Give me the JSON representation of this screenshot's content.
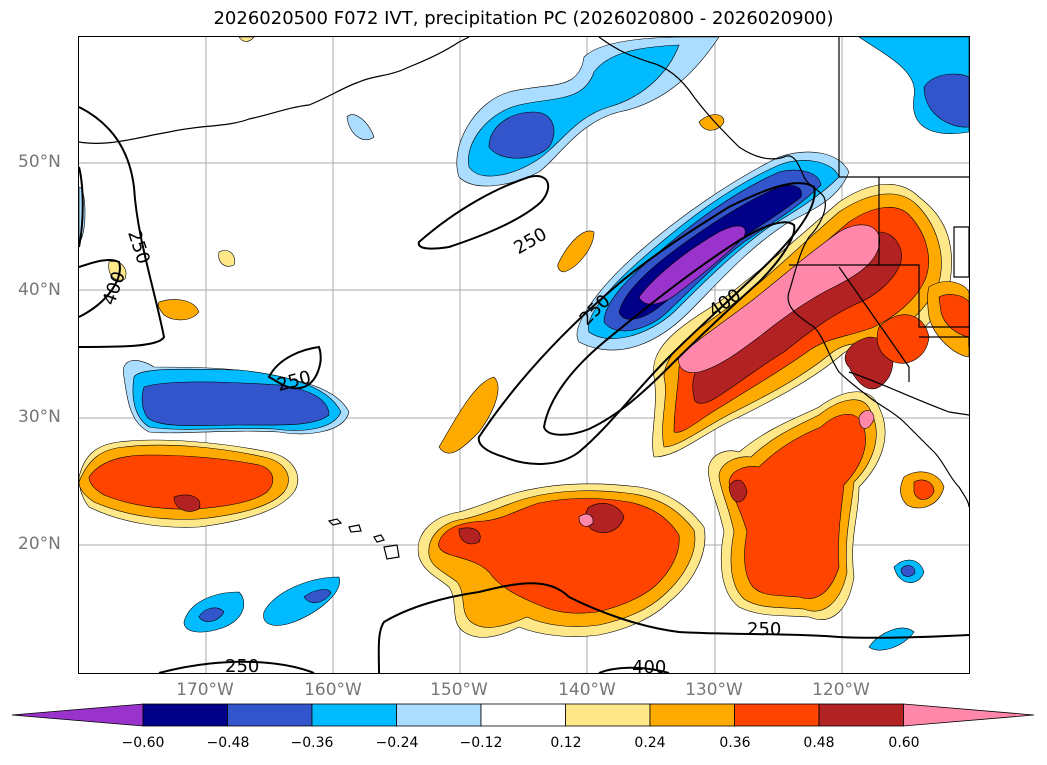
{
  "title": "2026020500 F072 IVT, precipitation PC (2026020800 - 2026020900)",
  "lat_labels": [
    "50°N",
    "40°N",
    "30°N",
    "20°N"
  ],
  "lon_labels": [
    "170°W",
    "160°W",
    "150°W",
    "140°W",
    "130°W",
    "120°W"
  ],
  "colorbar": {
    "ticks": [
      "−0.60",
      "−0.48",
      "−0.36",
      "−0.24",
      "−0.12",
      "0.12",
      "0.24",
      "0.36",
      "0.48",
      "0.60"
    ],
    "colors": [
      "#9933cc",
      "#000088",
      "#3355cc",
      "#00bbff",
      "#aaddff",
      "#ffffff",
      "#ffe88a",
      "#ffaa00",
      "#ff4400",
      "#b22222",
      "#ff88aa"
    ]
  },
  "contour_labels": {
    "ivt_250_a": "250",
    "ivt_250_b": "250",
    "ivt_250_c": "250",
    "ivt_250_d": "250",
    "ivt_250_e": "250",
    "ivt_250_f": "250",
    "ivt_400_a": "400",
    "ivt_400_b": "400",
    "ivt_400_c": "400"
  }
}
